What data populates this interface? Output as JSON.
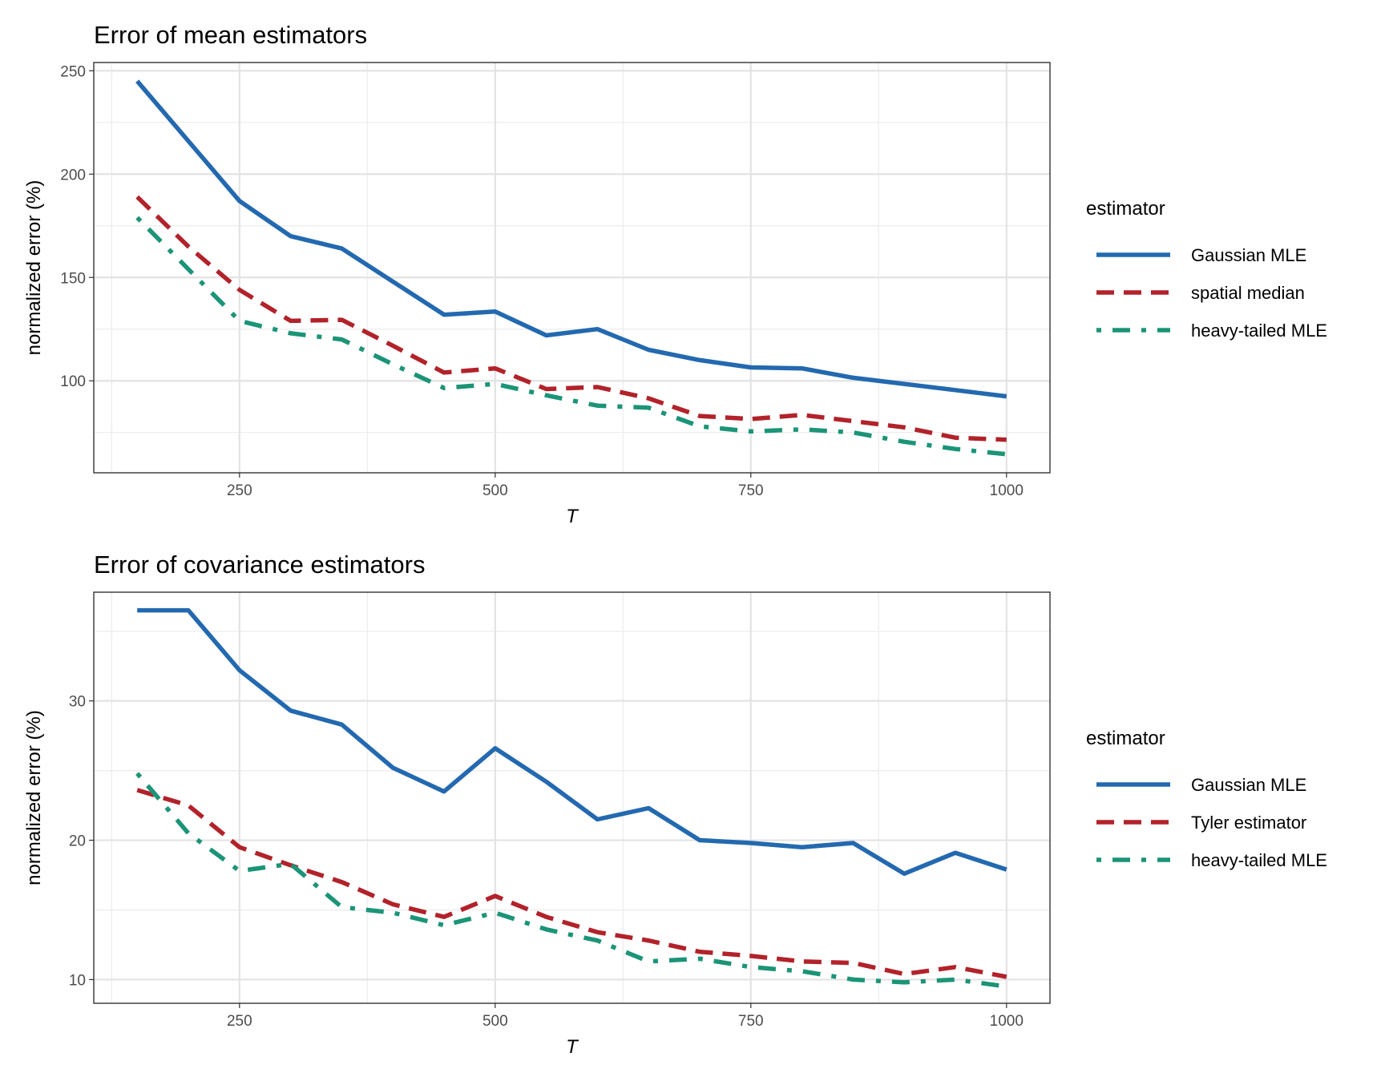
{
  "colors": {
    "Gaussian MLE": "#2369B0",
    "spatial median": "#B2222A",
    "Tyler estimator": "#B2222A",
    "heavy-tailed MLE": "#1B9477"
  },
  "chart_data": [
    {
      "type": "line",
      "title": "Error of mean estimators",
      "xlabel": "T",
      "ylabel": "normalized error (%)",
      "xlim": [
        107.5,
        1042.5
      ],
      "ylim": [
        55.5,
        254
      ],
      "xticks": [
        250,
        500,
        750,
        1000
      ],
      "yticks": [
        100,
        150,
        200,
        250
      ],
      "xminor": [
        125,
        375,
        625,
        875
      ],
      "yminor": [
        75,
        125,
        175,
        225
      ],
      "grid": true,
      "legend": {
        "title": "estimator",
        "position": "right"
      },
      "x": [
        150,
        200,
        250,
        300,
        350,
        400,
        450,
        500,
        550,
        600,
        650,
        700,
        750,
        800,
        850,
        900,
        950,
        1000
      ],
      "series": [
        {
          "name": "Gaussian MLE",
          "dash": "solid",
          "values": [
            245,
            216,
            187,
            170,
            164,
            148,
            132,
            133.5,
            122,
            125,
            115,
            110,
            106.5,
            106,
            101.5,
            98.5,
            95.5,
            92.5
          ]
        },
        {
          "name": "spatial median",
          "dash": "dashed",
          "values": [
            189,
            165,
            144,
            129,
            129.5,
            117,
            104,
            106,
            96,
            97,
            91.5,
            83,
            81.5,
            83.5,
            80.5,
            77.5,
            72.5,
            71.5
          ]
        },
        {
          "name": "heavy-tailed MLE",
          "dash": "dotdash",
          "values": [
            179,
            154,
            129,
            123,
            120,
            108,
            96.5,
            98.5,
            93,
            88,
            87,
            78,
            75.5,
            76.5,
            75,
            70.5,
            67,
            64.5
          ]
        }
      ]
    },
    {
      "type": "line",
      "title": "Error of covariance estimators",
      "xlabel": "T",
      "ylabel": "normalized error (%)",
      "xlim": [
        107.5,
        1042.5
      ],
      "ylim": [
        8.3,
        37.8
      ],
      "xticks": [
        250,
        500,
        750,
        1000
      ],
      "yticks": [
        10,
        20,
        30
      ],
      "xminor": [
        125,
        375,
        625,
        875
      ],
      "yminor": [
        15,
        25,
        35
      ],
      "grid": true,
      "legend": {
        "title": "estimator",
        "position": "right"
      },
      "x": [
        150,
        200,
        250,
        300,
        350,
        400,
        450,
        500,
        550,
        600,
        650,
        700,
        750,
        800,
        850,
        900,
        950,
        1000
      ],
      "series": [
        {
          "name": "Gaussian MLE",
          "dash": "solid",
          "values": [
            36.5,
            36.5,
            32.2,
            29.3,
            28.3,
            25.2,
            23.5,
            26.6,
            24.2,
            21.5,
            22.3,
            20,
            19.8,
            19.5,
            19.8,
            17.6,
            19.1,
            17.9
          ]
        },
        {
          "name": "Tyler estimator",
          "dash": "dashed",
          "values": [
            23.6,
            22.5,
            19.5,
            18.2,
            17,
            15.4,
            14.5,
            16,
            14.5,
            13.4,
            12.8,
            12,
            11.7,
            11.3,
            11.2,
            10.4,
            10.9,
            10.2
          ]
        },
        {
          "name": "heavy-tailed MLE",
          "dash": "dotdash",
          "values": [
            24.8,
            20.5,
            17.8,
            18.3,
            15.2,
            14.8,
            13.9,
            14.8,
            13.6,
            12.8,
            11.3,
            11.5,
            10.9,
            10.6,
            10,
            9.8,
            10,
            9.5
          ]
        }
      ]
    }
  ]
}
